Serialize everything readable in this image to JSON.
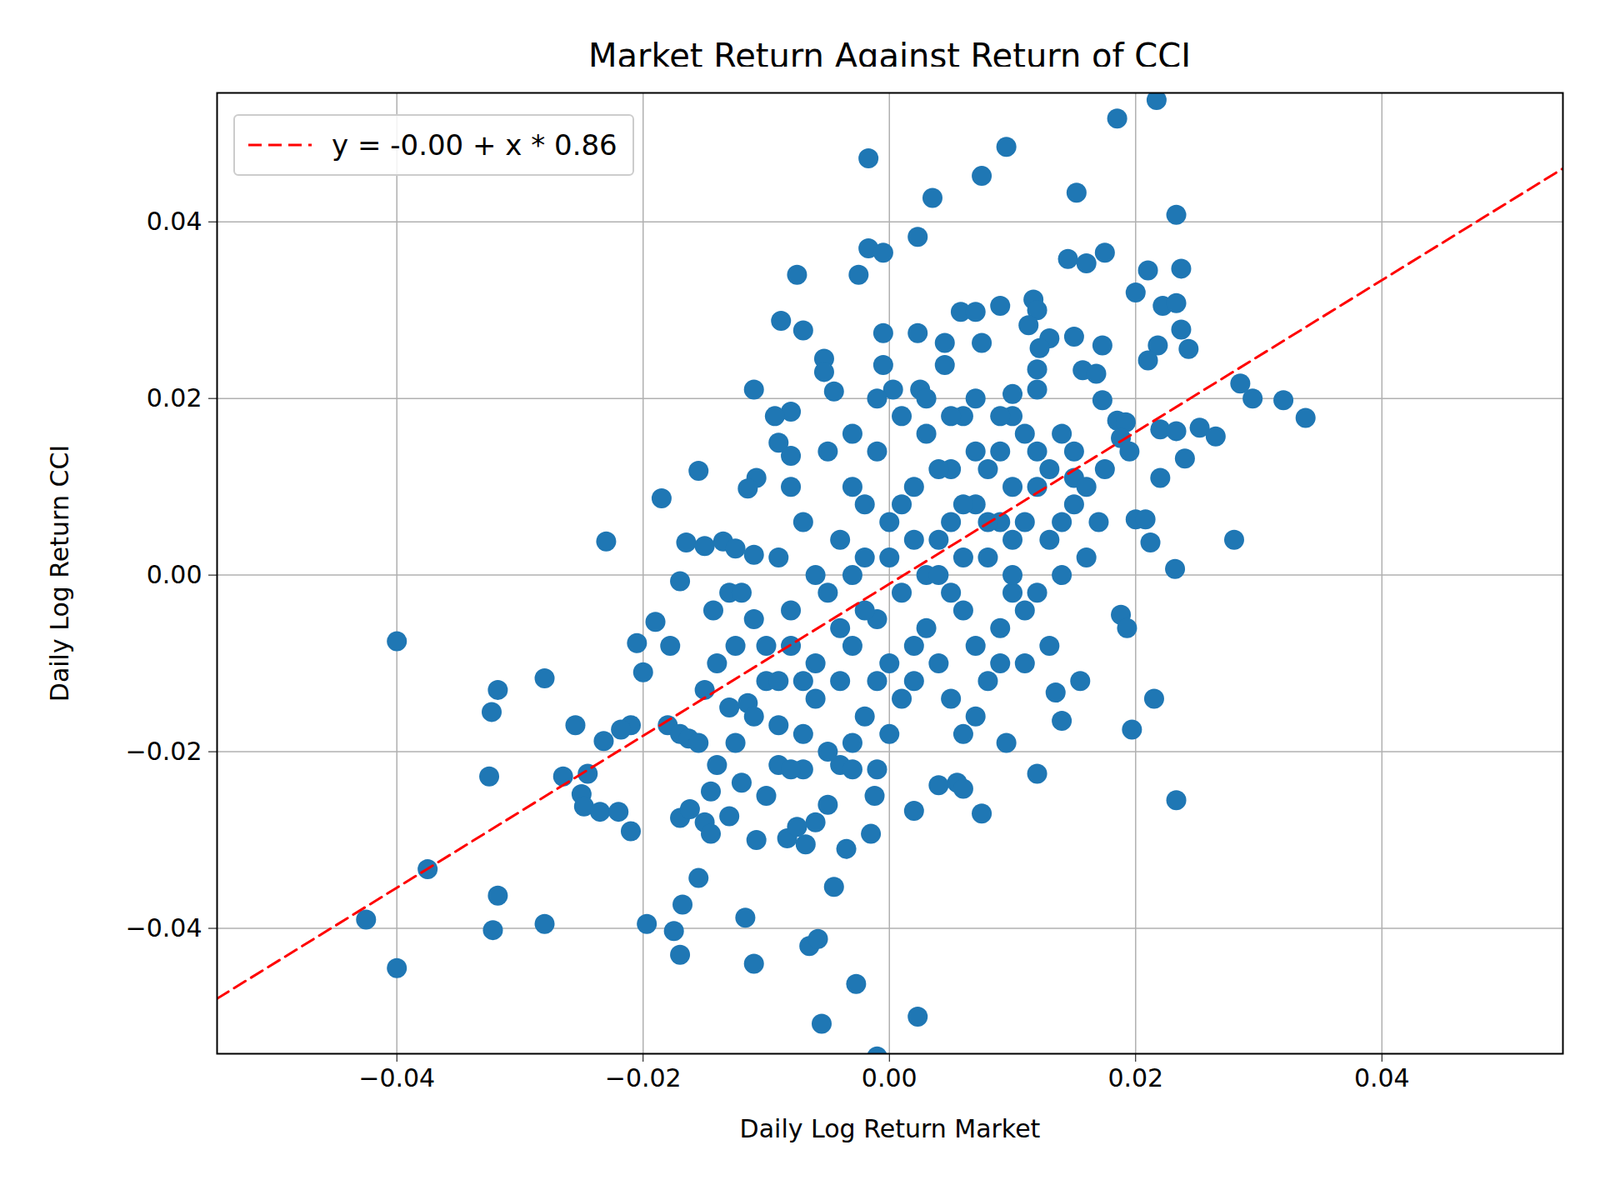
{
  "chart_data": {
    "type": "scatter",
    "title": "Market Return Against Return of CCI",
    "x_label": "Daily Log Return Market",
    "y_label": "Daily Log Return CCI",
    "color": "#1f77b4",
    "marker": "circle",
    "grid": true,
    "legend": "upper left",
    "xlim": [
      -0.0546,
      0.0547
    ],
    "ylim": [
      -0.0542,
      0.0546
    ],
    "xticks": [
      {
        "value": -0.04,
        "label": "−0.04"
      },
      {
        "value": -0.02,
        "label": "−0.02"
      },
      {
        "value": 0,
        "label": "0.00"
      },
      {
        "value": 0.02,
        "label": "0.02"
      },
      {
        "value": 0.04,
        "label": "0.04"
      }
    ],
    "yticks": [
      {
        "value": -0.04,
        "label": "−0.04"
      },
      {
        "value": -0.02,
        "label": "−0.02"
      },
      {
        "value": 0,
        "label": "0.00"
      },
      {
        "value": 0.02,
        "label": "0.02"
      },
      {
        "value": 0.04,
        "label": "0.04"
      }
    ],
    "fit": {
      "label": "y = -0.00 + x * 0.86",
      "intercept": -0.001,
      "slope": 0.86,
      "color": "#ff0000",
      "line_style": "dashed"
    },
    "points": [
      [
        0.0217,
        0.0538
      ],
      [
        0.0185,
        0.0517
      ],
      [
        -0.0017,
        0.0472
      ],
      [
        0.0095,
        0.0485
      ],
      [
        0.0075,
        0.0452
      ],
      [
        0.0035,
        0.0427
      ],
      [
        0.0152,
        0.0433
      ],
      [
        0.0233,
        0.0408
      ],
      [
        0.0023,
        0.0383
      ],
      [
        -0.0017,
        0.037
      ],
      [
        -0.0005,
        0.0365
      ],
      [
        -0.0075,
        0.034
      ],
      [
        -0.0025,
        0.034
      ],
      [
        0.0145,
        0.0358
      ],
      [
        0.016,
        0.0353
      ],
      [
        0.0175,
        0.0365
      ],
      [
        0.021,
        0.0345
      ],
      [
        0.0237,
        0.0347
      ],
      [
        0.02,
        0.032
      ],
      [
        0.0222,
        0.0305
      ],
      [
        0.0233,
        0.0308
      ],
      [
        0.0237,
        0.0278
      ],
      [
        0.0243,
        0.0256
      ],
      [
        0.0218,
        0.026
      ],
      [
        0.021,
        0.0243
      ],
      [
        0.009,
        0.0305
      ],
      [
        0.0058,
        0.0298
      ],
      [
        0.007,
        0.0298
      ],
      [
        0.0117,
        0.0312
      ],
      [
        0.012,
        0.03
      ],
      [
        0.0113,
        0.0283
      ],
      [
        0.013,
        0.0268
      ],
      [
        0.0122,
        0.0257
      ],
      [
        0.015,
        0.027
      ],
      [
        0.0173,
        0.026
      ],
      [
        -0.0088,
        0.0288
      ],
      [
        -0.007,
        0.0277
      ],
      [
        -0.0005,
        0.0274
      ],
      [
        0.0023,
        0.0274
      ],
      [
        0.0045,
        0.0263
      ],
      [
        0.0075,
        0.0263
      ],
      [
        -0.0053,
        0.0245
      ],
      [
        -0.0053,
        0.023
      ],
      [
        -0.0005,
        0.0238
      ],
      [
        0.0045,
        0.0238
      ],
      [
        0.0157,
        0.0232
      ],
      [
        0.0168,
        0.0228
      ],
      [
        0.012,
        0.0233
      ],
      [
        -0.011,
        0.021
      ],
      [
        -0.0045,
        0.0208
      ],
      [
        0.0003,
        0.021
      ],
      [
        0.0025,
        0.021
      ],
      [
        0.01,
        0.0205
      ],
      [
        0.012,
        0.021
      ],
      [
        0.0173,
        0.0198
      ],
      [
        0.0285,
        0.0217
      ],
      [
        0.0295,
        0.02
      ],
      [
        0.032,
        0.0198
      ],
      [
        0.0338,
        0.0178
      ],
      [
        0.0252,
        0.0167
      ],
      [
        0.0265,
        0.0157
      ],
      [
        0.022,
        0.0165
      ],
      [
        0.0233,
        0.0163
      ],
      [
        0.0185,
        0.0175
      ],
      [
        0.0192,
        0.0173
      ],
      [
        0.0188,
        0.0155
      ],
      [
        0.0195,
        0.014
      ],
      [
        0.024,
        0.0132
      ],
      [
        0.0175,
        0.012
      ],
      [
        0.022,
        0.011
      ],
      [
        0.015,
        0.011
      ],
      [
        -0.0155,
        0.0118
      ],
      [
        -0.0108,
        0.011
      ],
      [
        -0.0115,
        0.0098
      ],
      [
        -0.008,
        0.0185
      ],
      [
        -0.0093,
        0.018
      ],
      [
        -0.009,
        0.015
      ],
      [
        -0.008,
        0.0135
      ],
      [
        -0.0185,
        0.0087
      ],
      [
        -0.023,
        0.0038
      ],
      [
        -0.0165,
        0.0037
      ],
      [
        -0.015,
        0.0033
      ],
      [
        -0.0135,
        0.0038
      ],
      [
        -0.0125,
        0.003
      ],
      [
        -0.011,
        0.0023
      ],
      [
        -0.017,
        -0.0007
      ],
      [
        -0.019,
        -0.0053
      ],
      [
        -0.0205,
        -0.0077
      ],
      [
        -0.0178,
        -0.008
      ],
      [
        -0.02,
        -0.011
      ],
      [
        -0.04,
        -0.0075
      ],
      [
        -0.028,
        -0.0117
      ],
      [
        -0.0318,
        -0.013
      ],
      [
        -0.0323,
        -0.0155
      ],
      [
        -0.0255,
        -0.017
      ],
      [
        -0.0232,
        -0.0188
      ],
      [
        -0.021,
        -0.017
      ],
      [
        -0.0218,
        -0.0175
      ],
      [
        -0.018,
        -0.017
      ],
      [
        -0.017,
        -0.018
      ],
      [
        -0.0163,
        -0.0185
      ],
      [
        -0.0265,
        -0.0228
      ],
      [
        -0.0245,
        -0.0225
      ],
      [
        -0.025,
        -0.0248
      ],
      [
        -0.0248,
        -0.0262
      ],
      [
        -0.0235,
        -0.0268
      ],
      [
        -0.022,
        -0.0268
      ],
      [
        -0.021,
        -0.029
      ],
      [
        -0.0325,
        -0.0228
      ],
      [
        -0.0375,
        -0.0333
      ],
      [
        -0.0318,
        -0.0363
      ],
      [
        -0.0425,
        -0.039
      ],
      [
        -0.04,
        -0.0445
      ],
      [
        -0.0322,
        -0.0402
      ],
      [
        -0.028,
        -0.0395
      ],
      [
        -0.0197,
        -0.0395
      ],
      [
        -0.0175,
        -0.0403
      ],
      [
        -0.017,
        -0.043
      ],
      [
        -0.0168,
        -0.0373
      ],
      [
        -0.0155,
        -0.0343
      ],
      [
        -0.017,
        -0.0275
      ],
      [
        -0.0162,
        -0.0265
      ],
      [
        -0.015,
        -0.028
      ],
      [
        -0.0145,
        -0.0293
      ],
      [
        -0.013,
        -0.0273
      ],
      [
        -0.0108,
        -0.03
      ],
      [
        -0.0117,
        -0.0388
      ],
      [
        -0.011,
        -0.044
      ],
      [
        -0.0065,
        -0.042
      ],
      [
        -0.0058,
        -0.0412
      ],
      [
        -0.0055,
        -0.0508
      ],
      [
        -0.0027,
        -0.0463
      ],
      [
        -0.001,
        -0.0545
      ],
      [
        0.0023,
        -0.05
      ],
      [
        -0.0045,
        -0.0353
      ],
      [
        -0.0035,
        -0.031
      ],
      [
        -0.0015,
        -0.0293
      ],
      [
        -0.0068,
        -0.0305
      ],
      [
        -0.0083,
        -0.0298
      ],
      [
        -0.006,
        -0.028
      ],
      [
        -0.0075,
        -0.0285
      ],
      [
        0.002,
        -0.0267
      ],
      [
        0.004,
        -0.0238
      ],
      [
        0.0055,
        -0.0235
      ],
      [
        0.006,
        -0.0242
      ],
      [
        0.0075,
        -0.027
      ],
      [
        0.0095,
        -0.019
      ],
      [
        0.012,
        -0.0225
      ],
      [
        0.0135,
        -0.0133
      ],
      [
        0.014,
        -0.0165
      ],
      [
        0.0155,
        -0.012
      ],
      [
        0.0188,
        -0.0045
      ],
      [
        0.0193,
        -0.006
      ],
      [
        0.0197,
        -0.0175
      ],
      [
        0.0215,
        -0.014
      ],
      [
        0.0233,
        -0.0255
      ],
      [
        0.0232,
        0.0007
      ],
      [
        0.028,
        0.004
      ],
      [
        0.0212,
        0.0037
      ],
      [
        0.02,
        0.0063
      ],
      [
        0.0208,
        0.0063
      ],
      [
        -0.0012,
        -0.025
      ],
      [
        -0.001,
        -0.022
      ],
      [
        -0.004,
        -0.0215
      ],
      [
        -0.003,
        -0.019
      ],
      [
        -0.005,
        -0.026
      ],
      [
        -0.007,
        -0.022
      ],
      [
        -0.009,
        -0.0215
      ],
      [
        -0.01,
        -0.025
      ],
      [
        -0.012,
        -0.0235
      ],
      [
        -0.014,
        -0.0215
      ],
      [
        -0.0145,
        -0.0245
      ],
      [
        -0.0125,
        -0.019
      ],
      [
        -0.0155,
        -0.019
      ],
      [
        -0.013,
        -0.015
      ],
      [
        -0.015,
        -0.013
      ],
      [
        -0.014,
        -0.01
      ],
      [
        -0.0125,
        -0.008
      ],
      [
        -0.0143,
        -0.004
      ],
      [
        -0.013,
        -0.002
      ],
      [
        -0.011,
        -0.005
      ],
      [
        -0.01,
        -0.012
      ],
      [
        -0.0115,
        -0.0145
      ],
      [
        -0.009,
        -0.017
      ],
      [
        -0.008,
        -0.008
      ],
      [
        -0.008,
        -0.004
      ],
      [
        -0.006,
        -0.01
      ],
      [
        -0.005,
        -0.002
      ],
      [
        -0.004,
        0.004
      ],
      [
        -0.003,
        -0.008
      ],
      [
        -0.002,
        0.002
      ],
      [
        -0.001,
        -0.005
      ],
      [
        0.0,
        0.006
      ],
      [
        0.001,
        -0.002
      ],
      [
        0.002,
        0.01
      ],
      [
        0.003,
        -0.006
      ],
      [
        0.004,
        0.004
      ],
      [
        0.005,
        0.012
      ],
      [
        0.006,
        -0.004
      ],
      [
        0.007,
        0.008
      ],
      [
        0.008,
        0.002
      ],
      [
        0.009,
        0.014
      ],
      [
        0.01,
        -0.002
      ],
      [
        0.011,
        0.006
      ],
      [
        0.012,
        0.01
      ],
      [
        0.013,
        0.004
      ],
      [
        0.014,
        0.016
      ],
      [
        0.015,
        0.008
      ],
      [
        0.016,
        0.002
      ],
      [
        -0.009,
        0.002
      ],
      [
        -0.007,
        0.006
      ],
      [
        -0.006,
        -0.014
      ],
      [
        -0.004,
        -0.012
      ],
      [
        -0.003,
        0.01
      ],
      [
        -0.002,
        -0.016
      ],
      [
        -0.001,
        0.014
      ],
      [
        0.0,
        -0.01
      ],
      [
        0.001,
        0.018
      ],
      [
        0.002,
        -0.012
      ],
      [
        0.003,
        0.016
      ],
      [
        0.004,
        -0.01
      ],
      [
        0.005,
        0.006
      ],
      [
        0.006,
        0.018
      ],
      [
        0.007,
        -0.008
      ],
      [
        0.008,
        0.012
      ],
      [
        0.009,
        -0.006
      ],
      [
        0.01,
        0.018
      ],
      [
        0.011,
        -0.004
      ],
      [
        0.012,
        0.014
      ],
      [
        -0.01,
        -0.008
      ],
      [
        -0.008,
        0.01
      ],
      [
        -0.007,
        -0.018
      ],
      [
        -0.005,
        0.014
      ],
      [
        -0.004,
        -0.006
      ],
      [
        -0.003,
        0.0
      ],
      [
        -0.002,
        0.008
      ],
      [
        -0.001,
        -0.012
      ],
      [
        0.0,
        0.002
      ],
      [
        0.001,
        0.008
      ],
      [
        0.002,
        0.004
      ],
      [
        0.003,
        0.0
      ],
      [
        0.004,
        0.012
      ],
      [
        0.005,
        -0.002
      ],
      [
        0.006,
        0.008
      ],
      [
        0.007,
        0.014
      ],
      [
        0.008,
        -0.012
      ],
      [
        0.009,
        0.006
      ],
      [
        0.01,
        0.01
      ],
      [
        0.011,
        0.016
      ],
      [
        0.013,
        -0.008
      ],
      [
        0.014,
        0.006
      ],
      [
        0.015,
        0.014
      ],
      [
        0.016,
        0.01
      ],
      [
        0.017,
        0.006
      ],
      [
        -0.011,
        -0.016
      ],
      [
        -0.009,
        -0.012
      ],
      [
        -0.012,
        -0.002
      ],
      [
        -0.006,
        0.0
      ],
      [
        -0.005,
        -0.02
      ],
      [
        -0.002,
        -0.004
      ],
      [
        0.0,
        -0.018
      ],
      [
        0.002,
        -0.008
      ],
      [
        0.004,
        0.0
      ],
      [
        0.006,
        0.002
      ],
      [
        0.008,
        0.006
      ],
      [
        0.01,
        0.004
      ],
      [
        0.012,
        -0.002
      ],
      [
        0.013,
        0.012
      ],
      [
        0.003,
        0.02
      ],
      [
        -0.001,
        0.02
      ],
      [
        -0.003,
        0.016
      ],
      [
        0.005,
        0.018
      ],
      [
        0.007,
        0.02
      ],
      [
        0.009,
        0.018
      ],
      [
        -0.007,
        -0.012
      ],
      [
        -0.008,
        -0.022
      ],
      [
        -0.003,
        -0.022
      ],
      [
        0.001,
        -0.014
      ],
      [
        0.005,
        -0.014
      ],
      [
        0.007,
        -0.016
      ],
      [
        0.009,
        -0.01
      ],
      [
        0.011,
        -0.01
      ],
      [
        0.006,
        -0.018
      ],
      [
        0.01,
        0.0
      ],
      [
        0.014,
        0.0
      ]
    ]
  }
}
